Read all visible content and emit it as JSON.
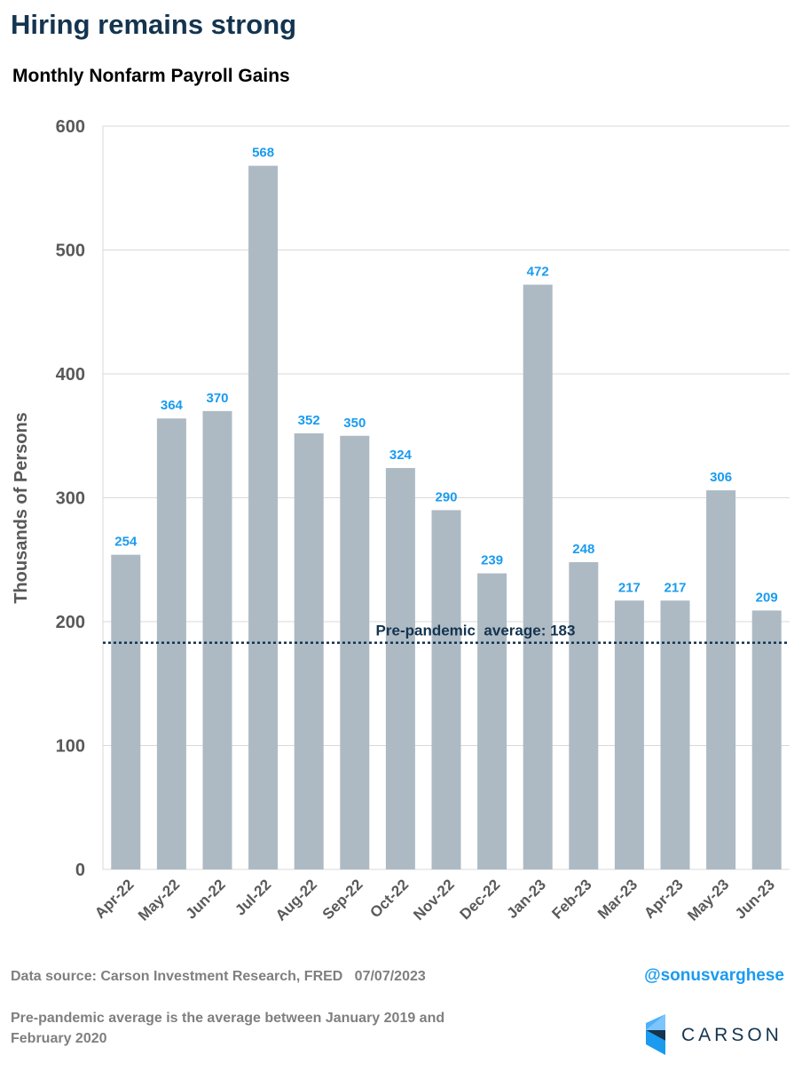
{
  "header": {
    "title": "Hiring remains strong",
    "subtitle": "Monthly Nonfarm Payroll Gains"
  },
  "colors": {
    "title": "#14344f",
    "bar": "#adbac4",
    "label": "#1a9bf0",
    "axis_text": "#595959",
    "avg_line": "#14344f",
    "grid": "#d9d9d9"
  },
  "chart_data": {
    "type": "bar",
    "title": "Monthly Nonfarm Payroll Gains",
    "xlabel": "",
    "ylabel": "Thousands of Persons",
    "ylim": [
      0,
      600
    ],
    "yticks": [
      0,
      100,
      200,
      300,
      400,
      500,
      600
    ],
    "grid": true,
    "categories": [
      "Apr-22",
      "May-22",
      "Jun-22",
      "Jul-22",
      "Aug-22",
      "Sep-22",
      "Oct-22",
      "Nov-22",
      "Dec-22",
      "Jan-23",
      "Feb-23",
      "Mar-23",
      "Apr-23",
      "May-23",
      "Jun-23"
    ],
    "values": [
      254,
      364,
      370,
      568,
      352,
      350,
      324,
      290,
      239,
      472,
      248,
      217,
      217,
      306,
      209
    ],
    "reference_line": {
      "value": 183,
      "label": "Pre-pandemic  average: 183"
    }
  },
  "footer": {
    "source": "Data source: Carson Investment Research, FRED   07/07/2023",
    "handle": "@sonusvarghese",
    "note_line1": "Pre-pandemic average is the average between January 2019 and",
    "note_line2": "February 2020",
    "logo_text": "CARSON"
  }
}
